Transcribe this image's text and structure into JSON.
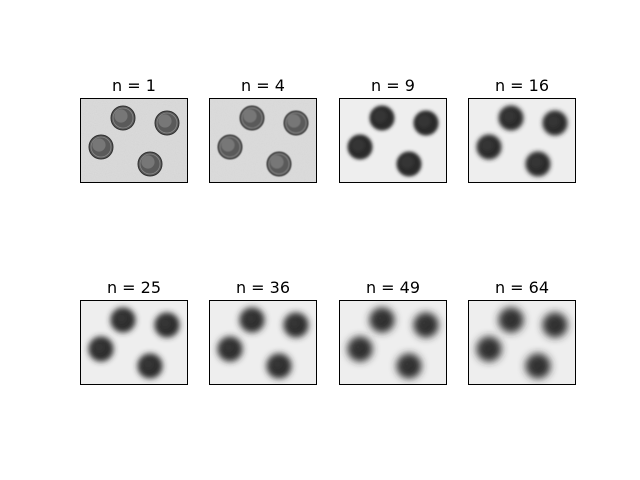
{
  "figure": {
    "panels": [
      {
        "title": "n = 1",
        "blur": 0.0
      },
      {
        "title": "n = 4",
        "blur": 0.6
      },
      {
        "title": "n = 9",
        "blur": 1.5
      },
      {
        "title": "n = 16",
        "blur": 2.2
      },
      {
        "title": "n = 25",
        "blur": 2.8
      },
      {
        "title": "n = 36",
        "blur": 3.2
      },
      {
        "title": "n = 49",
        "blur": 3.6
      },
      {
        "title": "n = 64",
        "blur": 4.0
      }
    ],
    "colors": {
      "background": "#e6e6e6",
      "coin_sharp": "#5a5a5a",
      "coin_blurred": "#2a2a2a"
    }
  }
}
